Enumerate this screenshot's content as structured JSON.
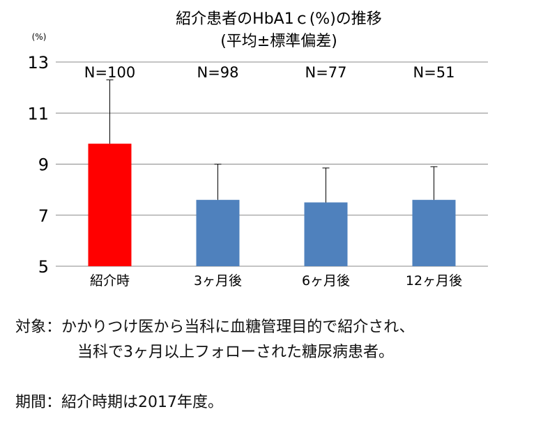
{
  "chart_data": {
    "type": "bar",
    "title": "紹介患者のHbA1ｃ(%)の推移",
    "subtitle": "(平均±標準偏差)",
    "unit_label": "(%)",
    "categories": [
      "紹介時",
      "3ヶ月後",
      "6ヶ月後",
      "12ヶ月後"
    ],
    "values": [
      9.8,
      7.6,
      7.5,
      7.6
    ],
    "error_plus": [
      2.5,
      1.4,
      1.35,
      1.3
    ],
    "n_labels": [
      "N=100",
      "N=98",
      "N=77",
      "N=51"
    ],
    "ylim": [
      5,
      13
    ],
    "yticks": [
      5,
      7,
      9,
      11,
      13
    ],
    "grid": true,
    "colors": [
      "#ff0000",
      "#4f81bd",
      "#4f81bd",
      "#4f81bd"
    ]
  },
  "notes": {
    "target_line1": "対象：かかりつけ医から当科に血糖管理目的で紹介され、",
    "target_line2": "当科で3ヶ月以上フォローされた糖尿病患者。",
    "period": "期間：紹介時期は2017年度。"
  }
}
